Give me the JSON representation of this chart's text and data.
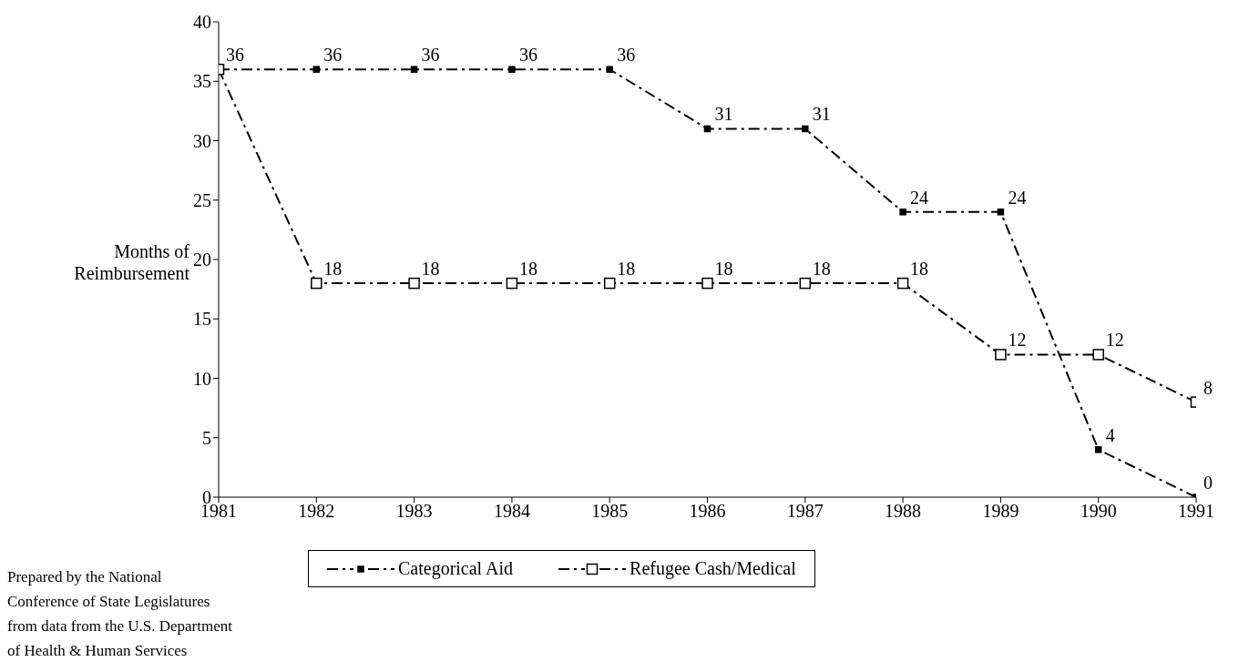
{
  "chart_data": {
    "type": "line",
    "x": [
      1981,
      1982,
      1983,
      1984,
      1985,
      1986,
      1987,
      1988,
      1989,
      1990,
      1991
    ],
    "xlim": [
      1981,
      1991
    ],
    "xticks": [
      1981,
      1982,
      1983,
      1984,
      1985,
      1986,
      1987,
      1988,
      1989,
      1990,
      1991
    ],
    "ylim": [
      0,
      40
    ],
    "yticks": [
      0,
      5,
      10,
      15,
      20,
      25,
      30,
      35,
      40
    ],
    "ylabel": "Months of Reimbursement",
    "grid": false,
    "legend": "bottom",
    "marker": "square",
    "line_style": "dashed",
    "series": [
      {
        "name": "Categorical Aid",
        "color": "#000000",
        "values": [
          36,
          36,
          36,
          36,
          36,
          31,
          31,
          24,
          24,
          4,
          0
        ],
        "value_labels": [
          null,
          "36",
          "36",
          "36",
          "36",
          "31",
          "31",
          "24",
          "24",
          "4",
          "0"
        ]
      },
      {
        "name": "Refugee Cash/Medical",
        "color": "#000000",
        "values": [
          36,
          18,
          18,
          18,
          18,
          18,
          18,
          18,
          12,
          12,
          8
        ],
        "value_labels": [
          "36",
          "18",
          "18",
          "18",
          "18",
          "18",
          "18",
          "18",
          "12",
          "12",
          "8"
        ]
      }
    ],
    "annotations": [
      "Prepared by the National Conference of State Legislatures from data from the U.S. Department of Health & Human Services"
    ]
  }
}
